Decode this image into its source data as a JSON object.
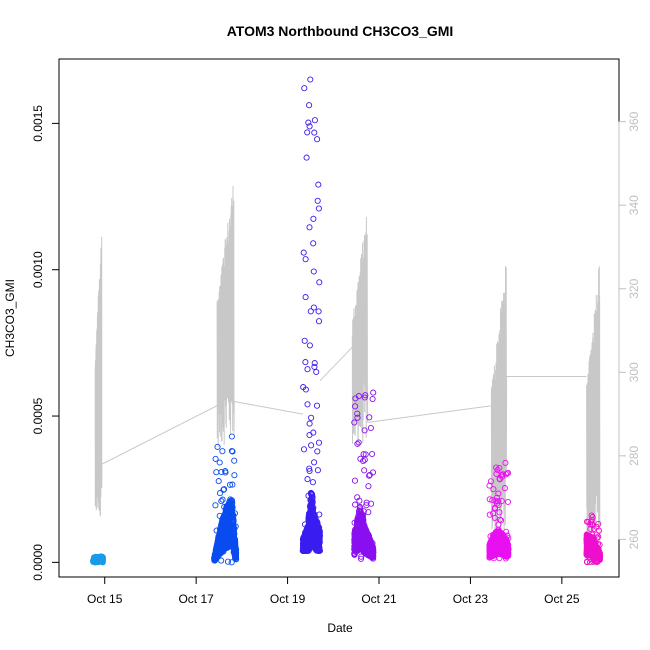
{
  "chart_data": {
    "type": "scatter",
    "title": "ATOM3 Northbound CH3CO3_GMI",
    "xlabel": "Date",
    "ylabel": "CH3CO3_GMI",
    "x_range": [
      "2017-10-14T00:00",
      "2017-10-26T06:00"
    ],
    "y_range": [
      -5e-05,
      0.00172
    ],
    "y2_range": [
      251,
      375
    ],
    "grid": false,
    "x_ticks": [
      {
        "date": "2017-10-15",
        "label": "Oct 15"
      },
      {
        "date": "2017-10-17",
        "label": "Oct 17"
      },
      {
        "date": "2017-10-19",
        "label": "Oct 19"
      },
      {
        "date": "2017-10-21",
        "label": "Oct 21"
      },
      {
        "date": "2017-10-23",
        "label": "Oct 23"
      },
      {
        "date": "2017-10-25",
        "label": "Oct 25"
      }
    ],
    "y_ticks": [
      {
        "value": 0.0,
        "label": "0.0000"
      },
      {
        "value": 0.0005,
        "label": "0.0005"
      },
      {
        "value": 0.001,
        "label": "0.0010"
      },
      {
        "value": 0.0015,
        "label": "0.0015"
      }
    ],
    "y2_ticks": [
      {
        "value": 260,
        "label": "260"
      },
      {
        "value": 280,
        "label": "280"
      },
      {
        "value": 300,
        "label": "300"
      },
      {
        "value": 320,
        "label": "320"
      },
      {
        "value": 340,
        "label": "340"
      },
      {
        "value": 360,
        "label": "360"
      }
    ],
    "colors": {
      "secondary_line": "#c8c8c8",
      "flight1": "#1a9be8",
      "flight2": "#0a4cf0",
      "flight3": "#3a1ef0",
      "flight4": "#8a10f0",
      "flight5": "#e810f0",
      "flight6": "#ee10cc"
    },
    "scatter_segments": [
      {
        "start": "2017-10-14T18:00",
        "end": "2017-10-14T23:00",
        "color": "#1a9be8",
        "profile": [
          [
            0,
            5e-06
          ],
          [
            0.5,
            1e-05
          ],
          [
            1,
            1.2e-05
          ]
        ],
        "max": 2e-05,
        "min": 0.0
      },
      {
        "start": "2017-10-17T09:30",
        "end": "2017-10-17T21:00",
        "color": "#0a4cf0",
        "profile": [
          [
            0,
            1e-05
          ],
          [
            0.3,
            8e-05
          ],
          [
            0.55,
            0.00012
          ],
          [
            0.8,
            0.00014
          ],
          [
            1,
            2e-05
          ]
        ],
        "max": 0.00043,
        "min": 0.0
      },
      {
        "start": "2017-10-19T08:00",
        "end": "2017-10-19T17:00",
        "color": "#3a1ef0",
        "profile": [
          [
            0,
            5e-05
          ],
          [
            0.3,
            8e-05
          ],
          [
            0.5,
            0.00016
          ],
          [
            0.7,
            0.0001
          ],
          [
            1,
            7e-05
          ]
        ],
        "max": 0.00165,
        "min": 4e-05
      },
      {
        "start": "2017-10-20T11:00",
        "end": "2017-10-20T21:00",
        "color": "#8a10f0",
        "profile": [
          [
            0,
            6e-05
          ],
          [
            0.3,
            0.00012
          ],
          [
            0.55,
            8e-05
          ],
          [
            1,
            3e-05
          ]
        ],
        "max": 0.00058,
        "min": 0.0
      },
      {
        "start": "2017-10-23T10:00",
        "end": "2017-10-23T20:00",
        "color": "#e810f0",
        "profile": [
          [
            0,
            4e-05
          ],
          [
            0.4,
            7e-05
          ],
          [
            0.7,
            6e-05
          ],
          [
            1,
            4e-05
          ]
        ],
        "max": 0.00034,
        "min": 1e-05
      },
      {
        "start": "2017-10-25T13:00",
        "end": "2017-10-25T20:00",
        "color": "#ee10cc",
        "profile": [
          [
            0,
            6e-05
          ],
          [
            0.5,
            5e-05
          ],
          [
            1,
            2e-05
          ]
        ],
        "max": 0.00016,
        "min": 0.0
      }
    ],
    "secondary_series": [
      {
        "start": "2017-10-14T19:00",
        "end": "2017-10-14T22:30",
        "low": 262,
        "high": 337,
        "end_value": 278
      },
      {
        "start": "2017-10-17T11:00",
        "end": "2017-10-17T20:00",
        "low": 280,
        "high": 348,
        "end_value": 293
      },
      {
        "start": "2017-10-20T10:00",
        "end": "2017-10-20T18:00",
        "low": 280,
        "high": 340,
        "end_value": 288
      },
      {
        "start": "2017-10-23T11:00",
        "end": "2017-10-23T19:00",
        "low": 258,
        "high": 328,
        "end_value": 299
      },
      {
        "start": "2017-10-25T13:00",
        "end": "2017-10-25T20:00",
        "low": 258,
        "high": 329,
        "end_value": 257
      }
    ],
    "secondary_transit": [
      [
        "2017-10-14T22:30",
        278
      ],
      [
        "2017-10-17T11:00",
        292
      ],
      [
        "2017-10-17T20:00",
        293
      ],
      [
        "2017-10-19T08:00",
        290
      ],
      [
        "2017-10-19T17:00",
        298
      ],
      [
        "2017-10-20T10:00",
        306
      ],
      [
        "2017-10-20T18:00",
        288
      ],
      [
        "2017-10-23T11:00",
        292
      ],
      [
        "2017-10-23T19:00",
        299
      ],
      [
        "2017-10-25T13:00",
        299
      ]
    ]
  }
}
